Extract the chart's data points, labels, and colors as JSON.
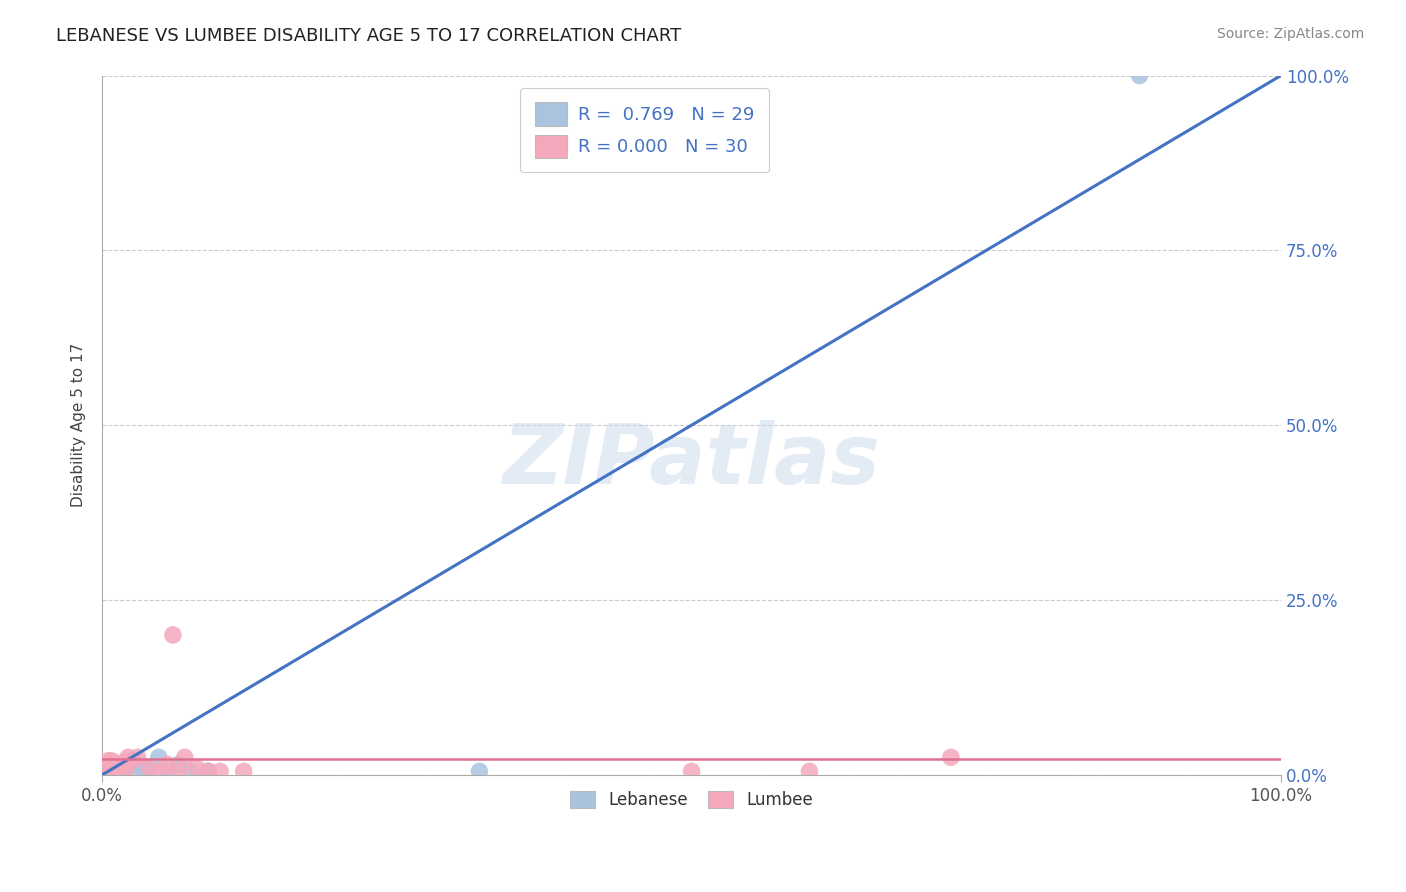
{
  "title": "LEBANESE VS LUMBEE DISABILITY AGE 5 TO 17 CORRELATION CHART",
  "source": "Source: ZipAtlas.com",
  "ylabel": "Disability Age 5 to 17",
  "xlim": [
    0.0,
    1.0
  ],
  "ylim": [
    0.0,
    1.0
  ],
  "ytick_vals": [
    0.0,
    0.25,
    0.5,
    0.75,
    1.0
  ],
  "ytick_labels": [
    "0.0%",
    "25.0%",
    "50.0%",
    "75.0%",
    "100.0%"
  ],
  "xtick_vals": [
    0.0,
    1.0
  ],
  "xtick_labels": [
    "0.0%",
    "100.0%"
  ],
  "watermark": "ZIPatlas",
  "lebanese_color": "#aac4e0",
  "lumbee_color": "#f5a8bc",
  "line_lebanese_color": "#4472C4",
  "line_lumbee_color": "#e07090",
  "lebanese_scatter": {
    "x": [
      0.0,
      0.002,
      0.003,
      0.005,
      0.006,
      0.007,
      0.008,
      0.009,
      0.01,
      0.011,
      0.012,
      0.013,
      0.015,
      0.016,
      0.018,
      0.02,
      0.022,
      0.025,
      0.028,
      0.03,
      0.035,
      0.04,
      0.048,
      0.055,
      0.065,
      0.075,
      0.09,
      0.32,
      0.88
    ],
    "y": [
      0.002,
      0.0,
      0.003,
      0.0,
      0.002,
      0.004,
      0.003,
      0.0,
      0.005,
      0.002,
      0.008,
      0.01,
      0.003,
      0.008,
      0.012,
      0.008,
      0.015,
      0.013,
      0.018,
      0.012,
      0.01,
      0.008,
      0.025,
      0.005,
      0.015,
      0.005,
      0.005,
      0.005,
      1.0
    ]
  },
  "lumbee_scatter": {
    "x": [
      0.0,
      0.001,
      0.002,
      0.003,
      0.004,
      0.005,
      0.006,
      0.007,
      0.008,
      0.01,
      0.012,
      0.015,
      0.018,
      0.02,
      0.022,
      0.025,
      0.03,
      0.04,
      0.05,
      0.055,
      0.06,
      0.065,
      0.07,
      0.08,
      0.09,
      0.1,
      0.12,
      0.5,
      0.6,
      0.72
    ],
    "y": [
      0.005,
      0.003,
      0.0,
      0.002,
      0.003,
      0.02,
      0.015,
      0.01,
      0.02,
      0.005,
      0.015,
      0.012,
      0.018,
      0.008,
      0.025,
      0.02,
      0.025,
      0.01,
      0.005,
      0.015,
      0.2,
      0.005,
      0.025,
      0.01,
      0.005,
      0.005,
      0.005,
      0.005,
      0.005,
      0.025
    ]
  },
  "leb_line_x": [
    0.0,
    1.0
  ],
  "leb_line_y": [
    0.0,
    1.0
  ],
  "lum_line_intercept": 0.022,
  "title_fontsize": 13,
  "tick_fontsize": 12,
  "ylabel_fontsize": 11,
  "source_fontsize": 10,
  "legend_fontsize": 13
}
